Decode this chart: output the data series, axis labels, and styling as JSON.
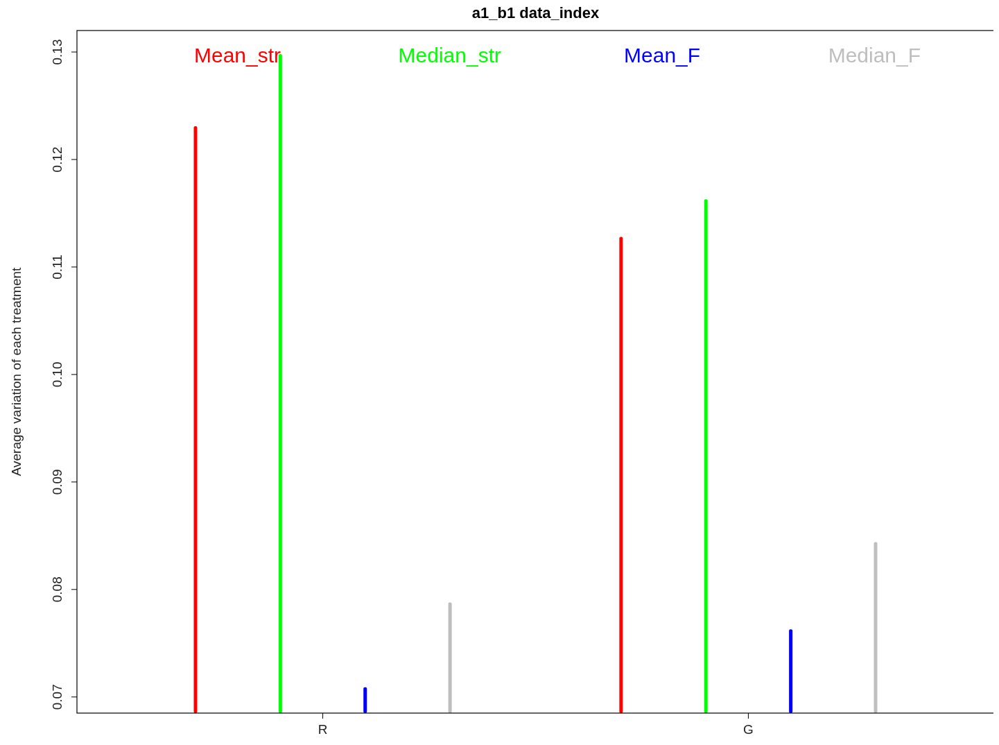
{
  "chart_data": {
    "type": "bar",
    "title": "a1_b1 data_index",
    "ylabel": "Average variation of each treatment",
    "categories": [
      "R",
      "G"
    ],
    "series": [
      {
        "name": "Mean_str",
        "color": "#ff0000",
        "values": [
          0.1231,
          0.1128
        ]
      },
      {
        "name": "Median_str",
        "color": "#00ff00",
        "values": [
          0.1298,
          0.1163
        ]
      },
      {
        "name": "Mean_F",
        "color": "#0000ff",
        "values": [
          0.0709,
          0.0763
        ]
      },
      {
        "name": "Median_F",
        "color": "#bebebe",
        "values": [
          0.0788,
          0.0844
        ]
      }
    ],
    "ylim": [
      0.0685,
      0.132
    ],
    "yticks": [
      {
        "value": 0.07,
        "label": "0.07"
      },
      {
        "value": 0.08,
        "label": "0.08"
      },
      {
        "value": 0.09,
        "label": "0.09"
      },
      {
        "value": 0.1,
        "label": "0.10"
      },
      {
        "value": 0.11,
        "label": "0.11"
      },
      {
        "value": 0.12,
        "label": "0.12"
      },
      {
        "value": 0.13,
        "label": "0.13"
      }
    ],
    "grid": false,
    "legend": "top"
  }
}
